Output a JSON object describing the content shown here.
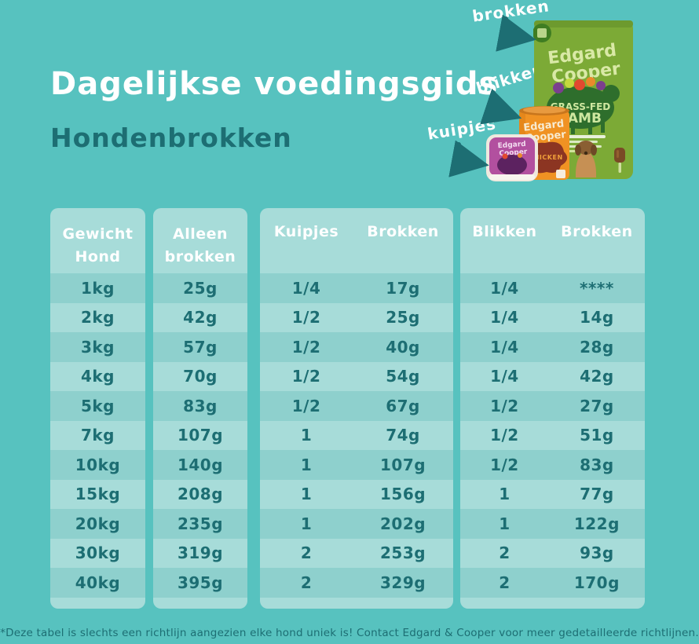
{
  "colors": {
    "background": "#57c2bf",
    "panel": "#a7dcd9",
    "panel_stripe": "#8ed0cd",
    "ink_dark_teal": "#1d6e73",
    "text_white": "#ffffff",
    "bag_green": "#7caa36",
    "bag_dark_green": "#2e6e2c",
    "bag_pale_text": "#d9e9a6",
    "can_orange": "#f09223",
    "can_maroon": "#8c3522",
    "tub_purple": "#b2509f",
    "tub_dark_purple": "#5c2260"
  },
  "header": {
    "title": "Dagelijkse voedingsgids",
    "subtitle": "Hondenbrokken"
  },
  "products": {
    "pointers": {
      "bag_label": "brokken",
      "can_label": "blikken",
      "tub_label": "kuipjes"
    },
    "bag": {
      "brand_top": "Edgard",
      "brand_bottom": "Cooper",
      "range": "GRASS-FED",
      "flavour": "LAMB"
    },
    "can": {
      "brand_top": "Edgard",
      "brand_bottom": "Cooper",
      "flavour": "CHICKEN"
    },
    "tub": {
      "brand_top": "Edgard",
      "brand_bottom": "Cooper"
    }
  },
  "table": {
    "panels": [
      {
        "header_line1": "Gewicht",
        "header_line2": "Hond"
      },
      {
        "header_line1": "Alleen",
        "header_line2": "brokken"
      },
      {
        "header_col1": "Kuipjes",
        "header_col2": "Brokken"
      },
      {
        "header_col1": "Blikken",
        "header_col2": "Brokken"
      }
    ],
    "rows": [
      {
        "weight": "1kg",
        "alleen": "25g",
        "kuipjes": "1/4",
        "kuipjes_brokken": "17g",
        "blikken": "1/4",
        "blikken_brokken": "****"
      },
      {
        "weight": "2kg",
        "alleen": "42g",
        "kuipjes": "1/2",
        "kuipjes_brokken": "25g",
        "blikken": "1/4",
        "blikken_brokken": "14g"
      },
      {
        "weight": "3kg",
        "alleen": "57g",
        "kuipjes": "1/2",
        "kuipjes_brokken": "40g",
        "blikken": "1/4",
        "blikken_brokken": "28g"
      },
      {
        "weight": "4kg",
        "alleen": "70g",
        "kuipjes": "1/2",
        "kuipjes_brokken": "54g",
        "blikken": "1/4",
        "blikken_brokken": "42g"
      },
      {
        "weight": "5kg",
        "alleen": "83g",
        "kuipjes": "1/2",
        "kuipjes_brokken": "67g",
        "blikken": "1/2",
        "blikken_brokken": "27g"
      },
      {
        "weight": "7kg",
        "alleen": "107g",
        "kuipjes": "1",
        "kuipjes_brokken": "74g",
        "blikken": "1/2",
        "blikken_brokken": "51g"
      },
      {
        "weight": "10kg",
        "alleen": "140g",
        "kuipjes": "1",
        "kuipjes_brokken": "107g",
        "blikken": "1/2",
        "blikken_brokken": "83g"
      },
      {
        "weight": "15kg",
        "alleen": "208g",
        "kuipjes": "1",
        "kuipjes_brokken": "156g",
        "blikken": "1",
        "blikken_brokken": "77g"
      },
      {
        "weight": "20kg",
        "alleen": "235g",
        "kuipjes": "1",
        "kuipjes_brokken": "202g",
        "blikken": "1",
        "blikken_brokken": "122g"
      },
      {
        "weight": "30kg",
        "alleen": "319g",
        "kuipjes": "2",
        "kuipjes_brokken": "253g",
        "blikken": "2",
        "blikken_brokken": "93g"
      },
      {
        "weight": "40kg",
        "alleen": "395g",
        "kuipjes": "2",
        "kuipjes_brokken": "329g",
        "blikken": "2",
        "blikken_brokken": "170g"
      }
    ]
  },
  "footnote": "*Deze tabel is slechts een richtlijn aangezien elke hond uniek is! Contact Edgard & Cooper voor meer gedetailleerde richtlijnen."
}
